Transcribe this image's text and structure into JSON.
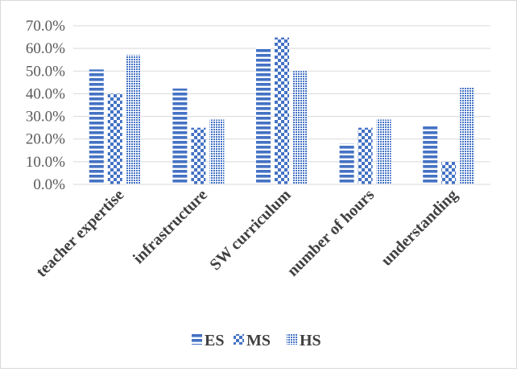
{
  "chart_data": {
    "type": "bar",
    "categories": [
      "teacher expertise",
      "infrastructure",
      "SW curriculum",
      "number of hours",
      "understanding"
    ],
    "series": [
      {
        "name": "ES",
        "values": [
          50.7,
          42.3,
          60.3,
          18.0,
          26.1
        ]
      },
      {
        "name": "MS",
        "values": [
          40.0,
          25.0,
          64.8,
          25.0,
          10.0
        ]
      },
      {
        "name": "HS",
        "values": [
          57.1,
          28.6,
          50.0,
          28.6,
          42.9
        ]
      }
    ],
    "y_ticks": [
      "0.0%",
      "10.0%",
      "20.0%",
      "30.0%",
      "40.0%",
      "50.0%",
      "60.0%",
      "70.0%"
    ],
    "ylim": [
      0,
      70
    ],
    "grid": true,
    "legend_position": "bottom",
    "colors": {
      "bar": "#4472c4",
      "grid": "#d9d9d9",
      "text": "#595959",
      "category_text": "#404040"
    }
  }
}
